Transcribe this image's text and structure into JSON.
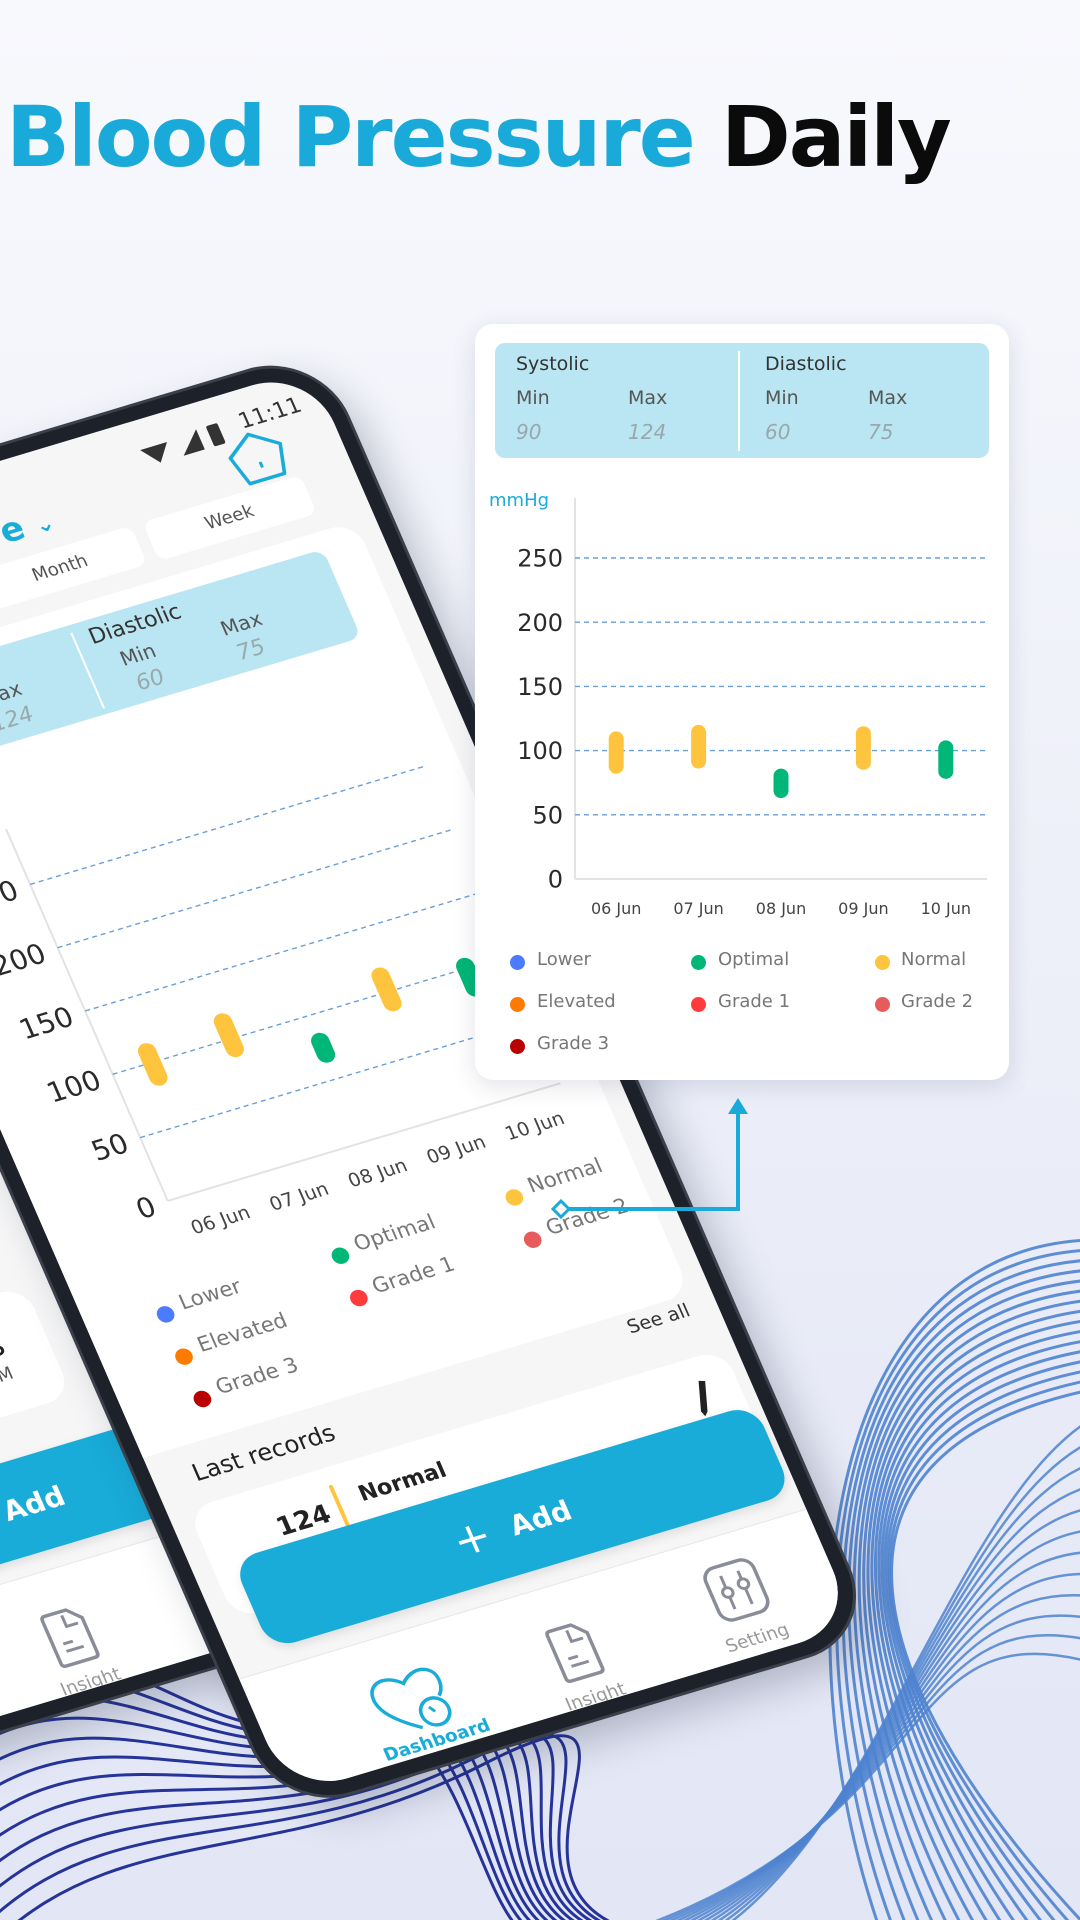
{
  "headline": {
    "highlight": "Blood Pressure",
    "rest": "Daily"
  },
  "colors": {
    "brand": "#1aaad9",
    "summary_bg": "#b9e6f2",
    "grid": "#6a9fd8",
    "wave_right": "#4e83cf",
    "wave_left": "#26349a"
  },
  "summary": {
    "systolic": {
      "title": "Systolic",
      "min_label": "Min",
      "max_label": "Max",
      "min": "90",
      "max": "124"
    },
    "diastolic": {
      "title": "Diastolic",
      "min_label": "Min",
      "max_label": "Max",
      "min": "60",
      "max": "75"
    }
  },
  "chart_data": {
    "type": "bar",
    "subtype": "floating-range",
    "unit_label": "mmHg",
    "ylim": [
      0,
      250
    ],
    "yticks": [
      "0",
      "50",
      "100",
      "150",
      "200",
      "250"
    ],
    "grid": true,
    "categories": [
      "06 Jun",
      "07 Jun",
      "08 Jun",
      "09 Jun",
      "10 Jun"
    ],
    "series": [
      {
        "low": [
          82,
          86,
          63,
          85,
          78
        ],
        "high": [
          115,
          120,
          86,
          119,
          108
        ],
        "status": [
          "Normal",
          "Normal",
          "Optimal",
          "Normal",
          "Optimal"
        ]
      }
    ],
    "legend_position": "bottom",
    "legend": [
      {
        "label": "Lower",
        "color": "#4b7bff"
      },
      {
        "label": "Optimal",
        "color": "#00b777"
      },
      {
        "label": "Normal",
        "color": "#ffc43d"
      },
      {
        "label": "Elevated",
        "color": "#ff7a00"
      },
      {
        "label": "Grade 1",
        "color": "#ff3b3b"
      },
      {
        "label": "Grade 2",
        "color": "#e65c5c"
      },
      {
        "label": "Grade 3",
        "color": "#b80000"
      }
    ]
  },
  "phone": {
    "time": "11:11",
    "title_fragment": "e",
    "tabs": [
      "Month",
      "Week"
    ],
    "see_all": "See all",
    "last_records": "Last records",
    "record": {
      "value": "124",
      "status": "Normal"
    },
    "add_label": "Add",
    "nav": [
      {
        "label": "Dashboard",
        "icon": "heart-gauge-icon",
        "active": true
      },
      {
        "label": "Insight",
        "icon": "document-icon",
        "active": false
      },
      {
        "label": "Setting",
        "icon": "sliders-icon",
        "active": false
      }
    ]
  },
  "back_phone": {
    "fragment_1": "s",
    "fragment_2": "PM",
    "add_label": "Add",
    "nav_insight": "Insight"
  }
}
